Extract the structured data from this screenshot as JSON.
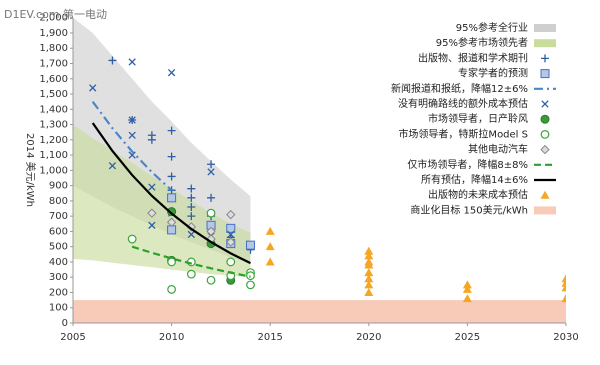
{
  "chart_data": {
    "type": "scatter",
    "watermark": "D1EV.com 第一电动",
    "y_label": "2014 美元/kWh",
    "xlim": [
      2005,
      2030
    ],
    "xticks": [
      2005,
      2010,
      2015,
      2020,
      2025,
      2030
    ],
    "ylim": [
      0,
      2000
    ],
    "yticks": [
      0,
      100,
      200,
      300,
      400,
      500,
      600,
      700,
      800,
      900,
      {
        "value": 1000,
        "label": "1,000"
      },
      {
        "value": 1100,
        "label": "1,100"
      },
      {
        "value": 1200,
        "label": "1,200"
      },
      {
        "value": 1300,
        "label": "1,300"
      },
      {
        "value": 1400,
        "label": "1,400"
      },
      {
        "value": 1500,
        "label": "1,500"
      },
      {
        "value": 1600,
        "label": "1,600"
      },
      {
        "value": 1700,
        "label": "1,700"
      },
      {
        "value": 1800,
        "label": "1,800"
      },
      {
        "value": 1900,
        "label": "1,900"
      },
      {
        "value": 2000,
        "label": "2,000"
      }
    ],
    "series": [
      {
        "name": "95%参考全行业",
        "type": "band",
        "color": "#cfcfcf",
        "x": [
          2005,
          2006,
          2007,
          2008,
          2009,
          2010,
          2011,
          2012,
          2013,
          2014
        ],
        "upper": [
          2000,
          1900,
          1750,
          1600,
          1450,
          1320,
          1180,
          1060,
          940,
          830
        ],
        "lower": [
          900,
          830,
          760,
          700,
          640,
          580,
          530,
          480,
          430,
          390
        ]
      },
      {
        "name": "95%参考市场领先者",
        "type": "band",
        "color": "#c9dc9c",
        "x": [
          2005,
          2006,
          2007,
          2008,
          2009,
          2010,
          2011,
          2012,
          2013,
          2014
        ],
        "upper": [
          1300,
          1210,
          1130,
          1050,
          960,
          880,
          800,
          720,
          650,
          590
        ],
        "lower": [
          420,
          410,
          395,
          380,
          365,
          350,
          335,
          320,
          310,
          300
        ]
      },
      {
        "name": "出版物、报道和学术期刊",
        "type": "points",
        "marker": "plus",
        "color": "#2e5fa6",
        "x": [
          2007,
          2008,
          2009,
          2009,
          2010,
          2010,
          2010,
          2010,
          2011,
          2011,
          2011,
          2011,
          2012,
          2012,
          2012,
          2012,
          2012,
          2013,
          2013,
          2014
        ],
        "values": [
          1720,
          1330,
          1230,
          1200,
          1260,
          1090,
          960,
          870,
          880,
          820,
          760,
          700,
          1040,
          820,
          700,
          620,
          520,
          560,
          520,
          480
        ]
      },
      {
        "name": "专家学者的预测",
        "type": "points",
        "marker": "square",
        "color": "#4472c4",
        "x": [
          2010,
          2010,
          2012,
          2013,
          2013,
          2014
        ],
        "values": [
          820,
          610,
          640,
          620,
          520,
          510
        ]
      },
      {
        "name": "新闻报道和报纸，降幅12±6%",
        "type": "line",
        "dash": "dashdot",
        "color": "#4a86c8",
        "x": [
          2006,
          2007,
          2008,
          2009,
          2010
        ],
        "values": [
          1450,
          1276,
          1123,
          988,
          870
        ]
      },
      {
        "name": "没有明确路线的额外成本预估",
        "type": "points",
        "marker": "x",
        "color": "#2e5fa6",
        "x": [
          2006,
          2007,
          2008,
          2008,
          2008,
          2008,
          2009,
          2009,
          2010,
          2010,
          2011,
          2012,
          2012,
          2013
        ],
        "values": [
          1540,
          1030,
          1710,
          1330,
          1230,
          1100,
          890,
          640,
          1640,
          720,
          580,
          990,
          570,
          580
        ]
      },
      {
        "name": "市场领导者，日产聆风",
        "type": "points",
        "marker": "dot",
        "color": "#3a9a3a",
        "x": [
          2010,
          2010,
          2012,
          2013
        ],
        "values": [
          730,
          410,
          520,
          280
        ]
      },
      {
        "name": "市场领导者，特斯拉Model S",
        "type": "points",
        "marker": "ring",
        "color": "#3aa53a",
        "x": [
          2008,
          2010,
          2010,
          2011,
          2011,
          2012,
          2012,
          2013,
          2013,
          2014,
          2014,
          2014
        ],
        "values": [
          550,
          400,
          220,
          400,
          320,
          280,
          720,
          400,
          310,
          330,
          310,
          250
        ]
      },
      {
        "name": "其他电动汽车",
        "type": "points",
        "marker": "diamond",
        "color": "#888888",
        "x": [
          2009,
          2010,
          2011,
          2012,
          2012,
          2013,
          2013
        ],
        "values": [
          720,
          660,
          630,
          600,
          550,
          710,
          530
        ]
      },
      {
        "name": "仅市场领导者，降幅8±8%",
        "type": "line",
        "dash": "dash",
        "color": "#2ca02c",
        "x": [
          2008,
          2009,
          2010,
          2011,
          2012,
          2013,
          2014
        ],
        "values": [
          500,
          460,
          423,
          389,
          358,
          330,
          303
        ]
      },
      {
        "name": "所有预估，降幅14±6%",
        "type": "line",
        "dash": "solid",
        "color": "#000000",
        "x": [
          2006,
          2007,
          2008,
          2009,
          2010,
          2011,
          2012,
          2013,
          2014
        ],
        "values": [
          1310,
          1127,
          969,
          833,
          717,
          616,
          530,
          456,
          392
        ]
      },
      {
        "name": "出版物的未来成本预估",
        "type": "points",
        "marker": "triangle",
        "color": "#f5a623",
        "x": [
          2015,
          2015,
          2015,
          2020,
          2020,
          2020,
          2020,
          2020,
          2020,
          2020,
          2020,
          2025,
          2025,
          2025,
          2030,
          2030,
          2030,
          2030
        ],
        "values": [
          600,
          500,
          400,
          470,
          440,
          400,
          380,
          330,
          290,
          250,
          200,
          250,
          220,
          160,
          290,
          260,
          230,
          160
        ]
      },
      {
        "name": "商业化目标 150美元/kWh",
        "type": "hband",
        "color": "#f8cbb8",
        "value": 150
      }
    ]
  }
}
